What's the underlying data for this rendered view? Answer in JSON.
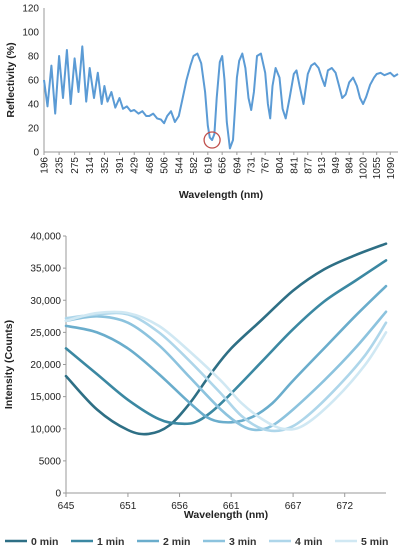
{
  "chart_data": [
    {
      "type": "line",
      "ylabel": "Reflectivity (%)",
      "xlabel": "Wavelength (nm)",
      "ylim": [
        0,
        120
      ],
      "yticks": [
        0,
        20,
        40,
        60,
        80,
        100,
        120
      ],
      "xlim": [
        196,
        1110
      ],
      "xticks": [
        196,
        235,
        275,
        314,
        352,
        391,
        429,
        468,
        506,
        544,
        582,
        619,
        656,
        694,
        731,
        767,
        804,
        841,
        877,
        913,
        949,
        984,
        1020,
        1055,
        1090
      ],
      "grid": false,
      "line_color": "#5b9bd5",
      "highlight_marker": {
        "x": 630,
        "y": 10,
        "color": "#c0504d"
      },
      "series": [
        {
          "x": [
            196,
            205,
            215,
            225,
            235,
            245,
            255,
            265,
            275,
            285,
            295,
            305,
            314,
            325,
            335,
            345,
            352,
            360,
            370,
            380,
            391,
            400,
            410,
            420,
            429,
            440,
            450,
            460,
            468,
            478,
            488,
            498,
            506,
            514,
            524,
            534,
            544,
            554,
            564,
            574,
            582,
            592,
            602,
            612,
            619,
            624,
            630,
            636,
            642,
            650,
            656,
            662,
            668,
            676,
            684,
            690,
            694,
            700,
            708,
            716,
            724,
            731,
            738,
            746,
            756,
            767,
            774,
            780,
            786,
            794,
            804,
            812,
            820,
            830,
            841,
            848,
            856,
            866,
            877,
            886,
            895,
            905,
            913,
            921,
            929,
            939,
            949,
            958,
            966,
            975,
            984,
            994,
            1004,
            1012,
            1020,
            1028,
            1038,
            1048,
            1055,
            1065,
            1075,
            1090,
            1100,
            1110
          ],
          "y": [
            60,
            38,
            72,
            32,
            80,
            45,
            85,
            40,
            78,
            50,
            88,
            42,
            70,
            45,
            66,
            40,
            55,
            42,
            50,
            37,
            45,
            36,
            38,
            34,
            35,
            32,
            34,
            30,
            30,
            32,
            28,
            27,
            24,
            30,
            34,
            25,
            30,
            45,
            60,
            72,
            80,
            82,
            74,
            50,
            22,
            12,
            10,
            15,
            45,
            75,
            80,
            60,
            25,
            3,
            10,
            40,
            62,
            76,
            82,
            70,
            45,
            35,
            50,
            80,
            82,
            66,
            40,
            28,
            55,
            70,
            62,
            36,
            28,
            45,
            65,
            68,
            55,
            40,
            65,
            72,
            74,
            70,
            62,
            55,
            68,
            70,
            66,
            55,
            45,
            48,
            58,
            62,
            55,
            45,
            40,
            46,
            56,
            62,
            65,
            66,
            64,
            66,
            63,
            65
          ]
        }
      ]
    },
    {
      "type": "line",
      "ylabel": "Intensity (Counts)",
      "xlabel": "Wavelength (nm)",
      "ylim": [
        0,
        40000
      ],
      "yticks": [
        0,
        5000,
        10000,
        15000,
        20000,
        25000,
        30000,
        35000,
        40000
      ],
      "ytick_labels": [
        "0",
        "5000",
        "10,000",
        "15,000",
        "20,000",
        "25,000",
        "30,000",
        "35,000",
        "40,000"
      ],
      "xlim": [
        645,
        676
      ],
      "xticks": [
        645,
        651,
        656,
        661,
        667,
        672
      ],
      "grid": false,
      "legend_position": "bottom",
      "series": [
        {
          "name": "0 min",
          "color": "#2e6f85",
          "x": [
            645,
            648,
            651,
            653,
            655,
            657,
            659,
            661,
            664,
            667,
            670,
            673,
            676
          ],
          "y": [
            18200,
            13000,
            9800,
            9200,
            10500,
            14000,
            18500,
            22500,
            27000,
            31500,
            34800,
            37000,
            38800
          ]
        },
        {
          "name": "1 min",
          "color": "#3b88a2",
          "x": [
            645,
            648,
            651,
            654,
            656,
            657.5,
            659,
            661,
            664,
            667,
            670,
            673,
            676
          ],
          "y": [
            22500,
            18500,
            14500,
            11500,
            10800,
            11000,
            12500,
            15500,
            20500,
            25500,
            29800,
            33000,
            36200
          ]
        },
        {
          "name": "2 min",
          "color": "#6aadcc",
          "x": [
            645,
            648,
            651,
            654,
            657,
            659,
            661,
            663,
            665,
            667,
            670,
            673,
            676
          ],
          "y": [
            26000,
            25000,
            22500,
            18500,
            14000,
            11500,
            11000,
            11800,
            14000,
            17500,
            22500,
            27500,
            32200
          ]
        },
        {
          "name": "3 min",
          "color": "#8cc3de",
          "x": [
            645,
            648,
            651,
            654,
            657,
            660,
            662,
            663.5,
            665,
            667,
            670,
            673,
            676
          ],
          "y": [
            26800,
            27500,
            26500,
            23000,
            18000,
            13000,
            10500,
            9800,
            10500,
            13000,
            17500,
            22500,
            28200
          ]
        },
        {
          "name": "4 min",
          "color": "#aed6ea",
          "x": [
            645,
            648,
            651,
            654,
            657,
            660,
            662,
            664,
            666,
            668,
            671,
            674,
            676
          ],
          "y": [
            27200,
            27800,
            27800,
            25000,
            20500,
            15500,
            12000,
            10000,
            9800,
            11500,
            16000,
            21500,
            26500
          ]
        },
        {
          "name": "5 min",
          "color": "#d0e8f3",
          "x": [
            645,
            648,
            651,
            654,
            657,
            660,
            662,
            664,
            666,
            668,
            671,
            674,
            676
          ],
          "y": [
            26800,
            28000,
            28000,
            26000,
            22000,
            17500,
            14000,
            11500,
            10000,
            10500,
            14500,
            20000,
            25000
          ]
        }
      ]
    }
  ]
}
